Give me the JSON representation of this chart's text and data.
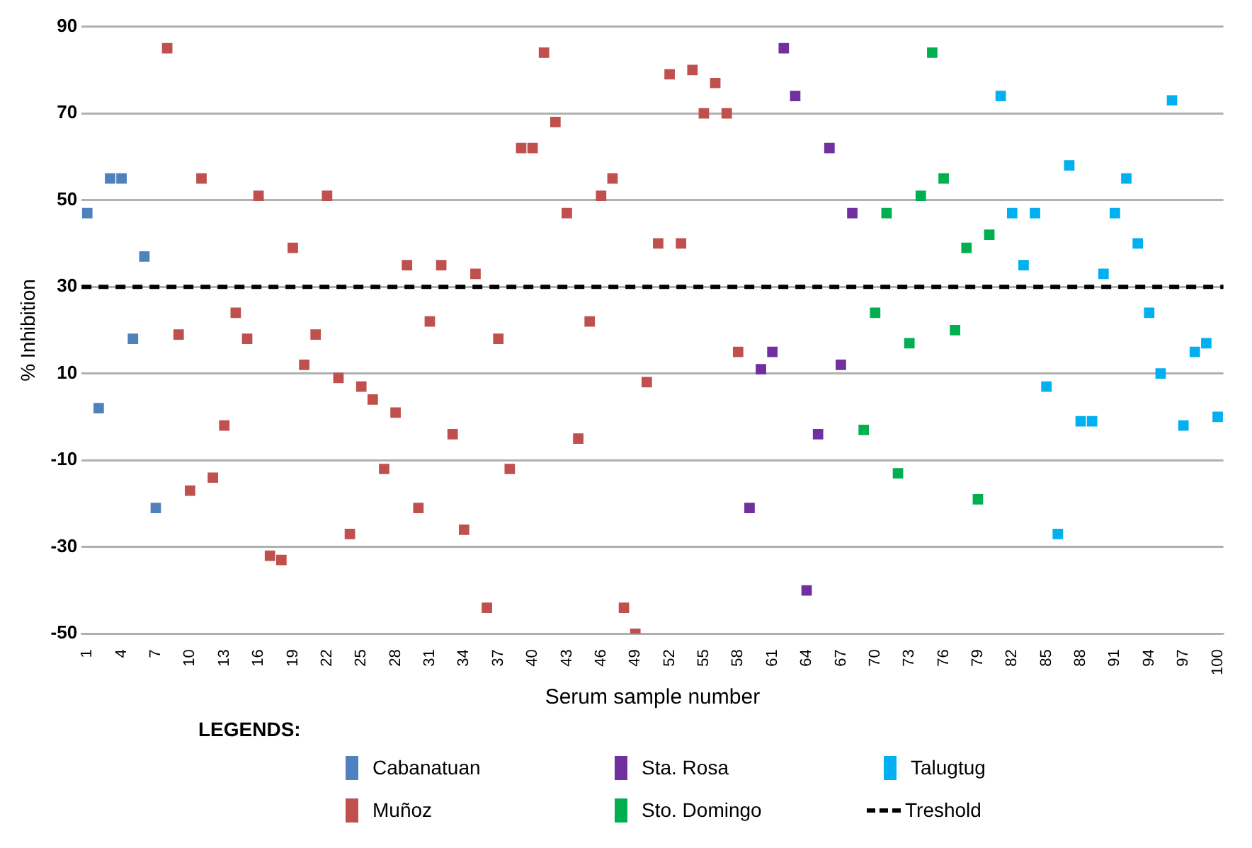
{
  "chart_data": {
    "type": "scatter",
    "xlabel": "Serum sample number",
    "ylabel": "% Inhibition",
    "legend_title": "LEGENDS:",
    "legend": "bottom",
    "grid": "y",
    "marker": "square",
    "xlim": [
      0.5,
      100.5
    ],
    "xticks": [
      1,
      4,
      7,
      10,
      13,
      16,
      19,
      22,
      25,
      28,
      31,
      34,
      37,
      40,
      43,
      46,
      49,
      52,
      55,
      58,
      61,
      64,
      67,
      70,
      73,
      76,
      79,
      82,
      85,
      88,
      91,
      94,
      97,
      100
    ],
    "ylim": [
      -50,
      90
    ],
    "yticks": [
      -50,
      -30,
      -10,
      10,
      30,
      50,
      70,
      90
    ],
    "ref_lines": [
      {
        "axis": "y",
        "value": 30,
        "label": "Treshold",
        "color": "#000000",
        "line_style": "dashed"
      }
    ],
    "series": [
      {
        "name": "Cabanatuan",
        "color": "#4f81bd",
        "x": [
          1,
          2,
          3,
          4,
          5,
          6,
          7
        ],
        "values": [
          47,
          2,
          55,
          55,
          18,
          37,
          -21
        ]
      },
      {
        "name": "Muñoz",
        "color": "#c0504d",
        "x": [
          8,
          9,
          10,
          11,
          12,
          13,
          14,
          15,
          16,
          17,
          18,
          19,
          20,
          21,
          22,
          23,
          24,
          25,
          26,
          27,
          28,
          29,
          30,
          31,
          32,
          33,
          34,
          35,
          36,
          37,
          38,
          39,
          40,
          41,
          42,
          43,
          44,
          45,
          46,
          47,
          48,
          49,
          50,
          51,
          52,
          53,
          54,
          55,
          56,
          57,
          58
        ],
        "values": [
          85,
          19,
          -17,
          55,
          -14,
          -2,
          24,
          18,
          51,
          -32,
          -33,
          39,
          12,
          19,
          51,
          9,
          -27,
          7,
          4,
          -12,
          1,
          35,
          -21,
          22,
          35,
          -4,
          -26,
          33,
          -44,
          18,
          -12,
          62,
          62,
          84,
          68,
          47,
          -5,
          22,
          51,
          55,
          -44,
          -50,
          8,
          40,
          79,
          40,
          80,
          70,
          77,
          70,
          15
        ]
      },
      {
        "name": "Sta. Rosa",
        "color": "#7030a0",
        "x": [
          59,
          60,
          61,
          62,
          63,
          64,
          65,
          66,
          67,
          68
        ],
        "values": [
          -21,
          11,
          15,
          85,
          74,
          -40,
          -4,
          62,
          12,
          47
        ]
      },
      {
        "name": "Sto. Domingo",
        "color": "#00b050",
        "x": [
          69,
          70,
          71,
          72,
          73,
          74,
          75,
          76,
          77,
          78,
          79,
          80
        ],
        "values": [
          -3,
          24,
          47,
          -13,
          17,
          51,
          84,
          55,
          20,
          39,
          -19,
          42
        ]
      },
      {
        "name": "Talugtug",
        "color": "#00b0f0",
        "x": [
          81,
          82,
          83,
          84,
          85,
          86,
          87,
          88,
          89,
          90,
          91,
          92,
          93,
          94,
          95,
          96,
          97,
          98,
          99,
          100
        ],
        "values": [
          74,
          47,
          35,
          47,
          7,
          -27,
          58,
          -1,
          -1,
          33,
          47,
          55,
          40,
          24,
          10,
          73,
          -2,
          15,
          17,
          0
        ]
      }
    ]
  }
}
